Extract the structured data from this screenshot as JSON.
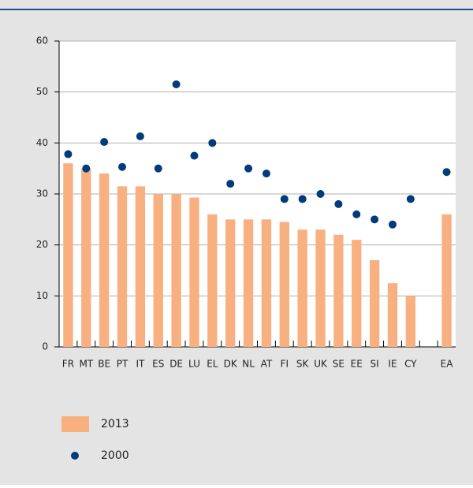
{
  "chart_data": {
    "type": "bar",
    "categories": [
      "FR",
      "MT",
      "BE",
      "PT",
      "IT",
      "ES",
      "DE",
      "LU",
      "EL",
      "DK",
      "NL",
      "AT",
      "FI",
      "SK",
      "UK",
      "SE",
      "EE",
      "SI",
      "IE",
      "CY",
      null,
      "EA"
    ],
    "series": [
      {
        "name": "2013",
        "type": "bar",
        "color": "#f8b081",
        "values": [
          36,
          35,
          34,
          31.5,
          31.5,
          30,
          30,
          29.3,
          26,
          25,
          25,
          25,
          24.5,
          23,
          23,
          22,
          21,
          17,
          12.5,
          10,
          null,
          26
        ]
      },
      {
        "name": "2000",
        "type": "scatter",
        "color": "#003b7b",
        "values": [
          37.8,
          35,
          40.2,
          35.3,
          41.3,
          35,
          51.5,
          37.5,
          40,
          32,
          35,
          34,
          29,
          29,
          30,
          28,
          26,
          25,
          24,
          29,
          null,
          34.3
        ]
      }
    ],
    "ylim": [
      0,
      60
    ],
    "yticks": [
      0,
      10,
      20,
      30,
      40,
      50,
      60
    ],
    "grid": true
  }
}
